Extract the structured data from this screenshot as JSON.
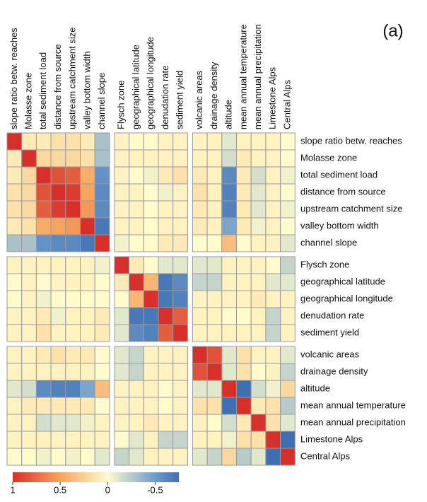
{
  "chart_data": {
    "type": "heatmap",
    "annotation": "(a)",
    "categories": [
      "slope ratio betw. reaches",
      "Molasse zone",
      "total sediment load",
      "distance from source",
      "upstream catchment size",
      "valley bottom width",
      "channel slope",
      "Flysch zone",
      "geographical latitude",
      "geographical longitude",
      "denudation rate",
      "sediment yield",
      "volcanic areas",
      "drainage density",
      "altitude",
      "mean annual temperature",
      "mean annual precipitation",
      "Limestone Alps",
      "Central Alps"
    ],
    "groups": [
      7,
      5,
      7
    ],
    "values": [
      [
        1,
        0.1,
        0.1,
        0.15,
        0.15,
        0.1,
        -0.3,
        0.05,
        0,
        0,
        0.05,
        0.05,
        0.05,
        0.05,
        -0.1,
        0.05,
        0.05,
        0.05,
        0
      ],
      [
        0.1,
        1,
        0.2,
        0.2,
        0.2,
        0.15,
        -0.3,
        0.05,
        0.05,
        0.05,
        0.05,
        0.05,
        0.05,
        0.05,
        -0.15,
        0.1,
        0.05,
        0.05,
        0
      ],
      [
        0.1,
        0.2,
        1,
        0.85,
        0.8,
        0.45,
        -0.55,
        0.05,
        0,
        -0.05,
        0.1,
        0.15,
        0.1,
        0.05,
        -0.6,
        0.1,
        -0.15,
        0.05,
        -0.05
      ],
      [
        0.15,
        0.2,
        0.85,
        1,
        0.95,
        0.5,
        -0.6,
        0.05,
        0.05,
        0,
        -0.05,
        0.05,
        0.15,
        0.05,
        -0.65,
        0.1,
        -0.1,
        0.05,
        0
      ],
      [
        0.15,
        0.2,
        0.8,
        0.95,
        1,
        0.55,
        -0.6,
        0.05,
        0.05,
        0,
        0.05,
        0.05,
        0.1,
        0.05,
        -0.65,
        0.1,
        -0.1,
        0.05,
        -0.05
      ],
      [
        0.1,
        0.15,
        0.45,
        0.5,
        0.55,
        1,
        -0.7,
        0.05,
        0.05,
        0,
        0.05,
        0.05,
        0.1,
        0.05,
        -0.45,
        0.1,
        -0.05,
        0.05,
        0
      ],
      [
        -0.3,
        -0.3,
        -0.55,
        -0.6,
        -0.6,
        -0.7,
        1,
        -0.05,
        0,
        0,
        0.1,
        0.1,
        0,
        0,
        0.35,
        0,
        0.05,
        0.05,
        -0.1
      ],
      [
        0.05,
        0.05,
        0.05,
        0.05,
        0.05,
        0.05,
        -0.05,
        1,
        0.1,
        0,
        -0.1,
        -0.1,
        -0.1,
        -0.1,
        0.05,
        0.05,
        0.05,
        0,
        -0.2
      ],
      [
        0,
        0.05,
        0,
        0.05,
        0.05,
        0.05,
        0,
        0.1,
        1,
        0.4,
        -0.7,
        -0.6,
        -0.2,
        -0.2,
        0.05,
        0.05,
        0.05,
        -0.1,
        -0.1
      ],
      [
        0,
        0.05,
        -0.05,
        0,
        0,
        0,
        0,
        0,
        0.4,
        1,
        -0.7,
        -0.65,
        0.05,
        0.05,
        0.05,
        0.05,
        0.1,
        0.05,
        0.05
      ],
      [
        0.05,
        0.05,
        0.1,
        -0.05,
        0.05,
        0.05,
        0.1,
        -0.1,
        -0.7,
        -0.7,
        1,
        0.8,
        0.05,
        0.05,
        0,
        0,
        0.05,
        -0.2,
        0.05
      ],
      [
        0.05,
        0.05,
        0.15,
        0.05,
        0.05,
        0.05,
        0.1,
        -0.1,
        -0.6,
        -0.65,
        0.8,
        1,
        0.05,
        0.05,
        0.05,
        0.05,
        0.05,
        -0.2,
        0.05
      ],
      [
        0.05,
        0.05,
        0.1,
        0.15,
        0.1,
        0.1,
        0,
        -0.1,
        -0.2,
        0.05,
        0.05,
        0.05,
        1,
        0.85,
        -0.1,
        0.15,
        0.05,
        0.05,
        -0.1
      ],
      [
        0.05,
        0.05,
        0.05,
        0.05,
        0.05,
        0.05,
        0,
        -0.1,
        -0.2,
        0.05,
        0.05,
        0.05,
        0.85,
        1,
        -0.1,
        0.15,
        0,
        0.05,
        -0.2
      ],
      [
        -0.1,
        -0.15,
        -0.6,
        -0.65,
        -0.65,
        -0.45,
        0.35,
        0.05,
        0.05,
        0.05,
        0,
        0.05,
        -0.1,
        -0.1,
        1,
        -0.75,
        -0.15,
        -0.05,
        0.2
      ],
      [
        0.05,
        0.1,
        0.1,
        0.1,
        0.1,
        0.1,
        0,
        0.05,
        0.05,
        0.05,
        0,
        0.05,
        0.15,
        0.15,
        -0.75,
        1,
        0.1,
        0.15,
        -0.25
      ],
      [
        0.05,
        0.05,
        -0.15,
        -0.1,
        -0.1,
        -0.05,
        0.05,
        0.05,
        0.05,
        0.1,
        0.05,
        0.05,
        0.05,
        0,
        -0.15,
        0.1,
        1,
        0.15,
        -0.1
      ],
      [
        0.05,
        0.05,
        0.05,
        0.05,
        0.05,
        0.05,
        0.05,
        0,
        -0.1,
        0.05,
        -0.2,
        -0.2,
        0.05,
        0.05,
        -0.05,
        0.15,
        0.15,
        1,
        -0.75
      ],
      [
        0,
        0,
        -0.05,
        0,
        -0.05,
        0,
        -0.1,
        -0.2,
        -0.1,
        0.05,
        0.05,
        0.05,
        -0.1,
        -0.2,
        0.2,
        -0.25,
        -0.1,
        -0.75,
        1
      ]
    ],
    "colorscale": [
      [
        1,
        "#d7302a"
      ],
      [
        0.5,
        "#f6a45e"
      ],
      [
        0,
        "#fffbcc"
      ],
      [
        -0.5,
        "#6e9bcb"
      ],
      [
        -0.75,
        "#3f6fb0"
      ]
    ],
    "colorbar_ticks": [
      1,
      0.5,
      0,
      -0.5
    ]
  }
}
